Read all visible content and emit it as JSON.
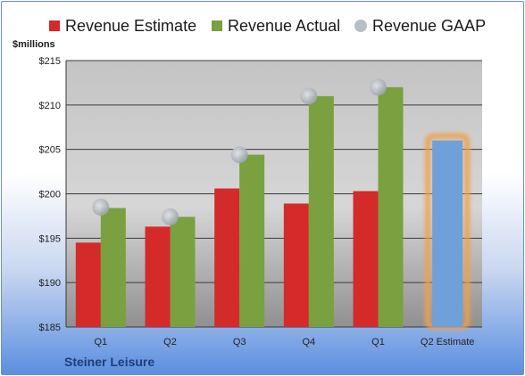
{
  "legend": [
    {
      "label": "Revenue Estimate",
      "color": "#d42a2a",
      "kind": "square"
    },
    {
      "label": "Revenue Actual",
      "color": "#7aa040",
      "kind": "square"
    },
    {
      "label": "Revenue GAAP",
      "color": "#b8bec6",
      "kind": "dot"
    }
  ],
  "unit_label": "$millions",
  "company": "Steiner Leisure",
  "chart_data": {
    "type": "bar",
    "categories": [
      "Q1",
      "Q2",
      "Q3",
      "Q4",
      "Q1",
      "Q2 Estimate"
    ],
    "ylim": [
      185,
      215
    ],
    "yticks": [
      185,
      190,
      195,
      200,
      205,
      210,
      215
    ],
    "ytick_labels": [
      "$185",
      "$190",
      "$195",
      "$200",
      "$205",
      "$210",
      "$215"
    ],
    "series": [
      {
        "name": "Revenue Estimate",
        "color": "#d42a2a",
        "values": [
          194.5,
          196.3,
          200.6,
          198.9,
          200.3,
          null
        ]
      },
      {
        "name": "Revenue Actual",
        "color": "#7aa040",
        "values": [
          198.4,
          197.4,
          204.4,
          211.0,
          212.0,
          null
        ]
      },
      {
        "name": "Revenue GAAP",
        "color": "#b8bec6",
        "kind": "marker",
        "values": [
          198.5,
          197.4,
          204.4,
          211.0,
          212.0,
          null
        ]
      }
    ],
    "forecast": {
      "category": "Q2 Estimate",
      "value": 206.0,
      "color": "#6fa0d8",
      "highlight": "#f0a050"
    },
    "grid": true,
    "legend_position": "top"
  }
}
